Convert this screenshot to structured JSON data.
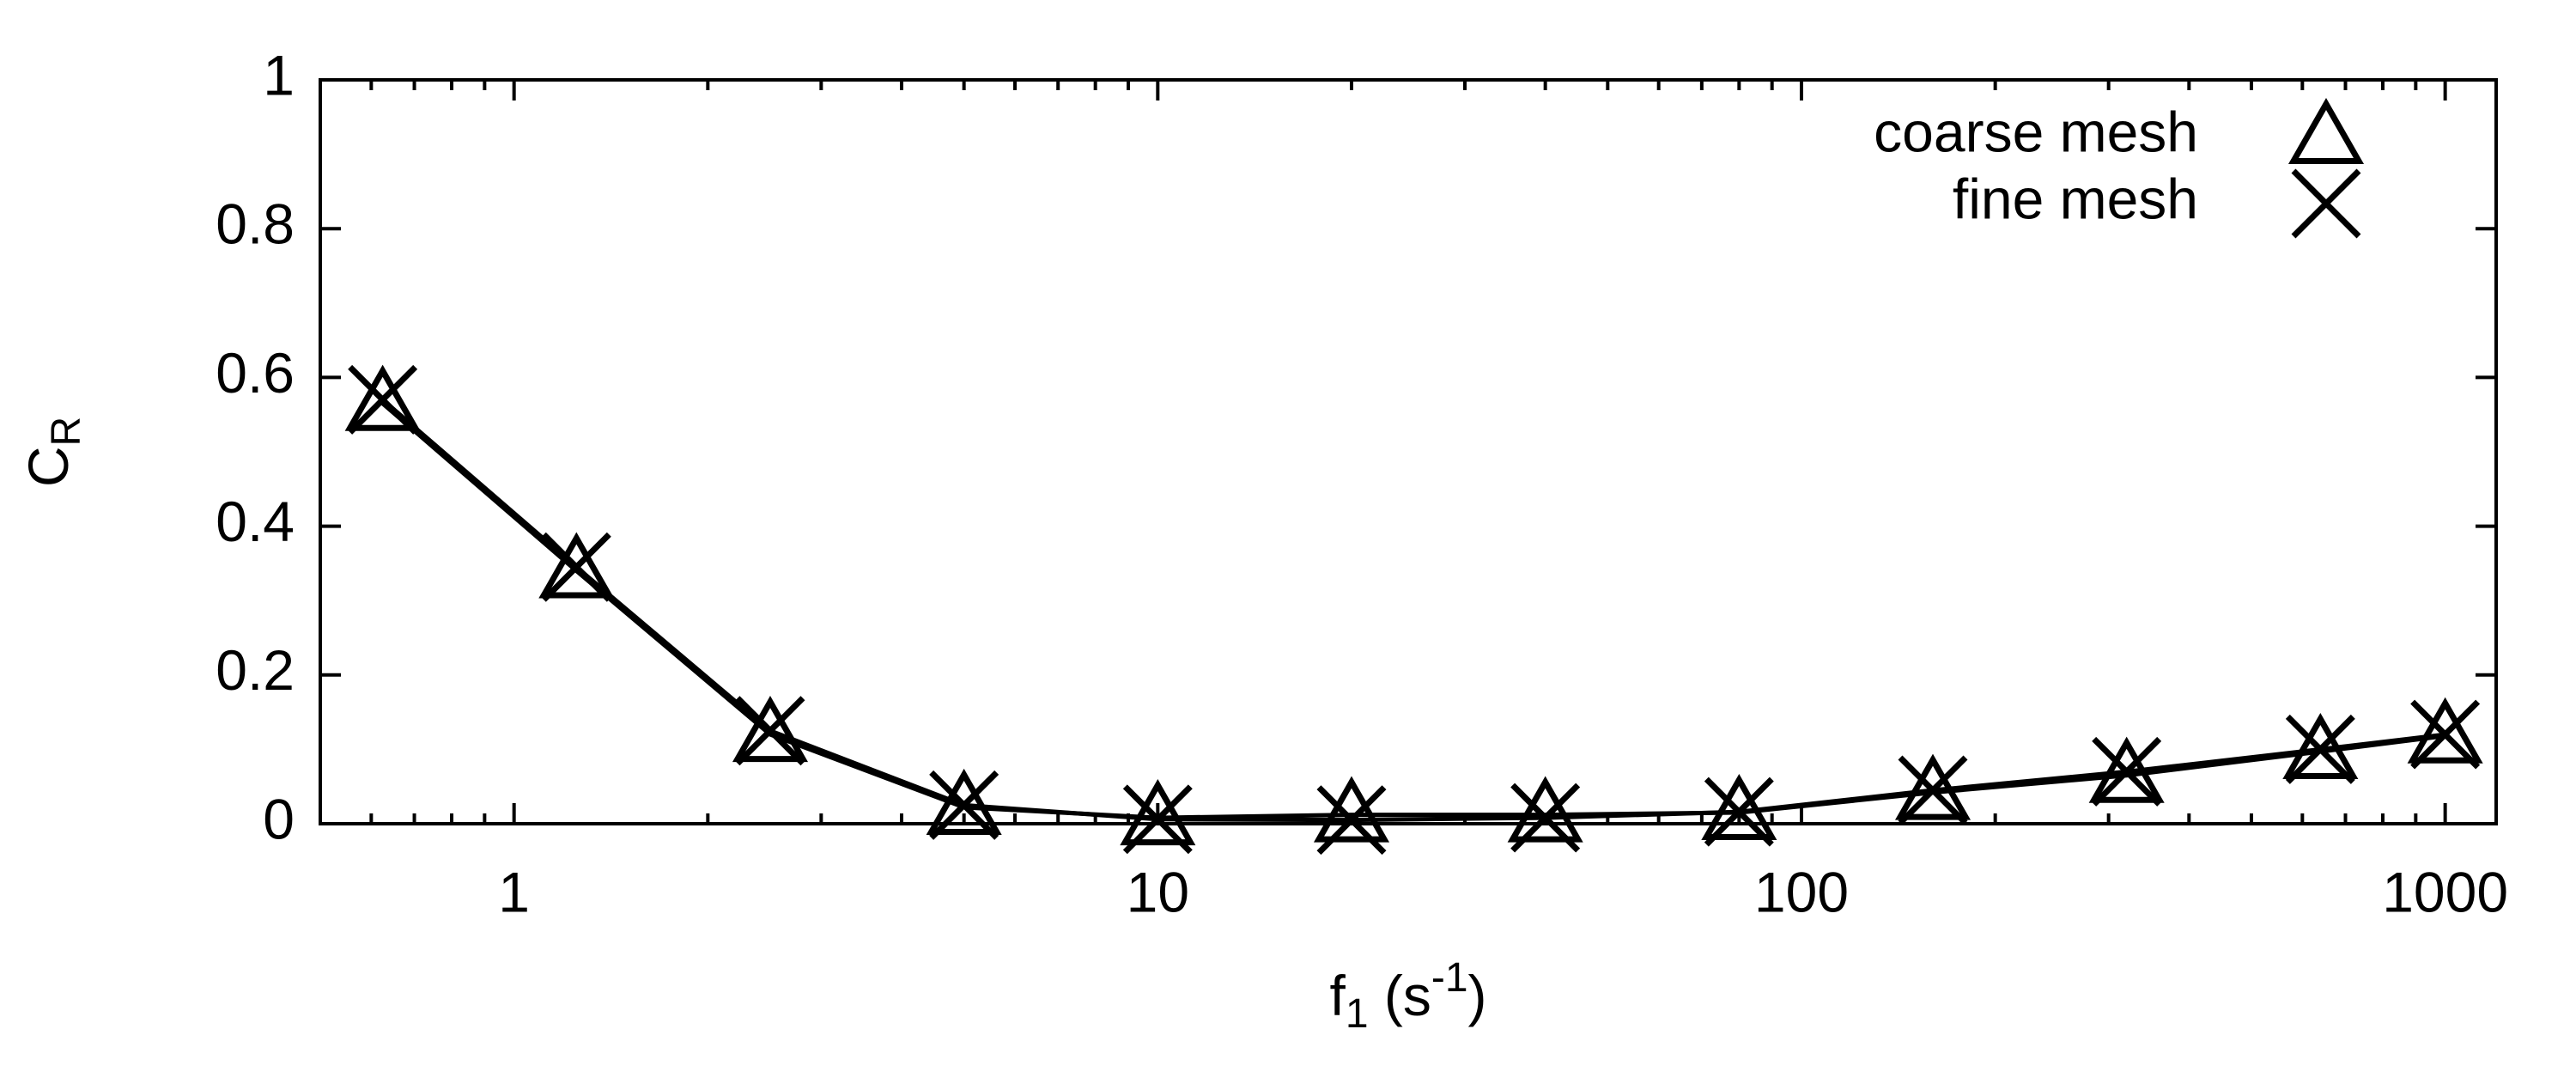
{
  "chart_data": {
    "type": "line",
    "x_label": [
      "f",
      "1",
      " (s",
      "-1",
      ")"
    ],
    "y_label": [
      "C",
      "R"
    ],
    "x": [
      0.625,
      1.25,
      2.5,
      5,
      10,
      20,
      40,
      80,
      160,
      320,
      640,
      1000
    ],
    "xscale": "log",
    "xlim": [
      0.5,
      1200
    ],
    "xticks": [
      1,
      10,
      100,
      1000
    ],
    "xminorticks": [
      0.6,
      0.7,
      0.8,
      0.9,
      2,
      3,
      4,
      5,
      6,
      7,
      8,
      9,
      20,
      30,
      40,
      50,
      60,
      70,
      80,
      90,
      200,
      300,
      400,
      500,
      600,
      700,
      800,
      900
    ],
    "ylim": [
      0,
      1
    ],
    "yticks": [
      0,
      0.2,
      0.4,
      0.6,
      0.8,
      1
    ],
    "grid": false,
    "legend": "top-right",
    "series": [
      {
        "name": "coarse mesh",
        "marker": "triangle",
        "color": "#000000",
        "values": [
          0.565,
          0.34,
          0.12,
          0.022,
          0.008,
          0.012,
          0.012,
          0.015,
          0.042,
          0.065,
          0.097,
          0.118
        ]
      },
      {
        "name": "fine mesh",
        "marker": "x",
        "color": "#000000",
        "values": [
          0.57,
          0.345,
          0.125,
          0.025,
          0.006,
          0.005,
          0.008,
          0.016,
          0.045,
          0.07,
          0.1,
          0.12
        ]
      }
    ]
  }
}
